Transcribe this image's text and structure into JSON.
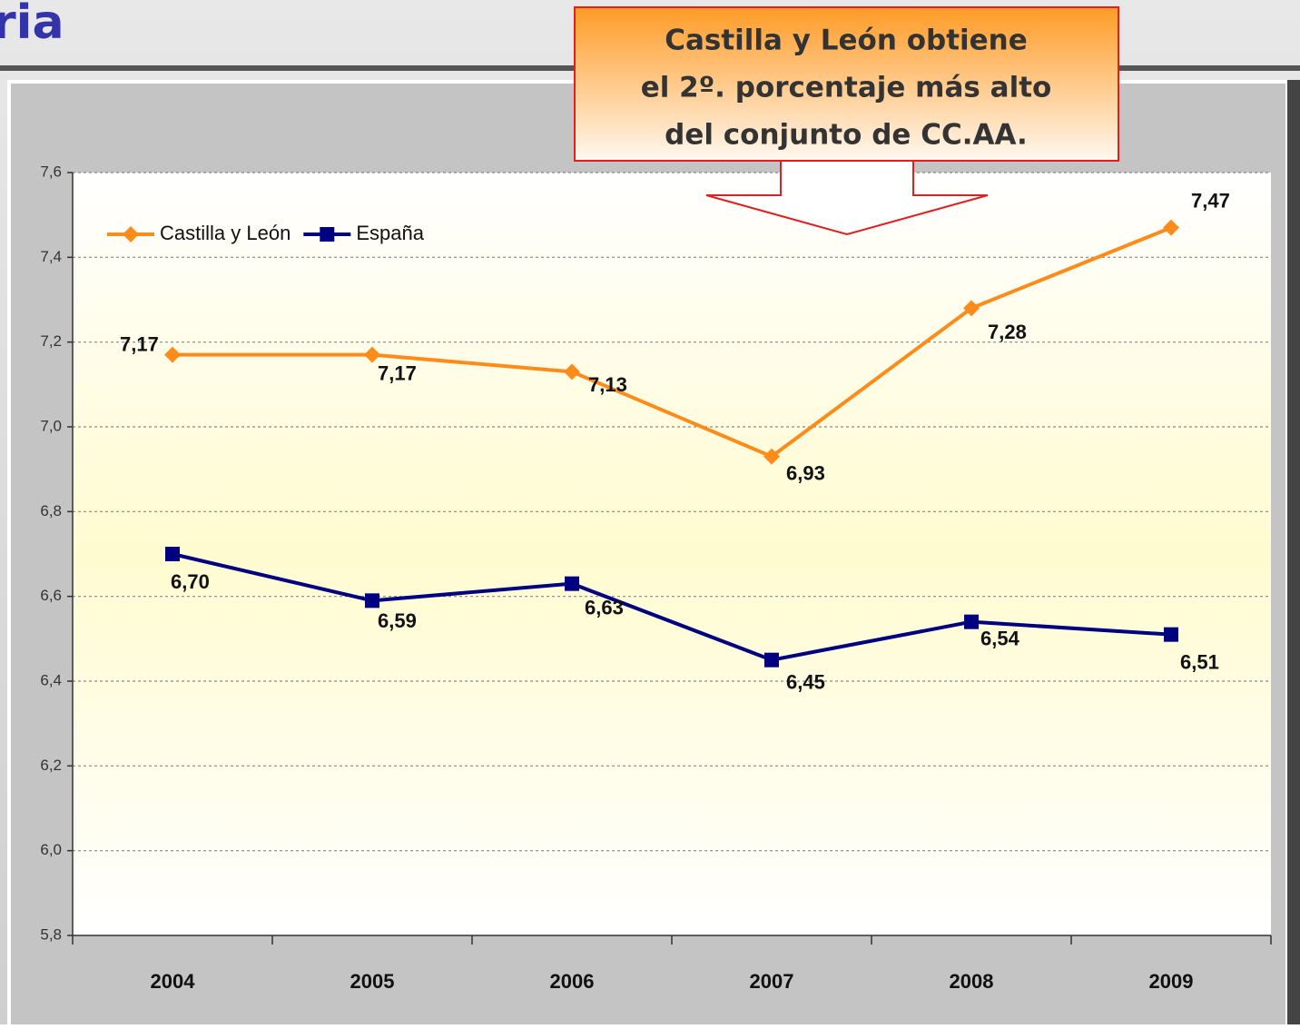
{
  "page_title": "ria",
  "annotation": [
    "Castilla y León obtiene",
    "el 2º. porcentaje más alto",
    "del conjunto de CC.AA."
  ],
  "chart_data": {
    "type": "line",
    "categories": [
      "2004",
      "2005",
      "2006",
      "2007",
      "2008",
      "2009"
    ],
    "series": [
      {
        "name": "Castilla y León",
        "color": "#ff8c1a",
        "marker": "diamond",
        "values": [
          7.17,
          7.17,
          7.13,
          6.93,
          7.28,
          7.47
        ],
        "value_labels": [
          "7,17",
          "7,17",
          "7,13",
          "6,93",
          "7,28",
          "7,47"
        ]
      },
      {
        "name": "España",
        "color": "#000080",
        "marker": "square",
        "values": [
          6.7,
          6.59,
          6.63,
          6.45,
          6.54,
          6.51
        ],
        "value_labels": [
          "6,70",
          "6,59",
          "6,63",
          "6,45",
          "6,54",
          "6,51"
        ]
      }
    ],
    "ylim": [
      5.8,
      7.6
    ],
    "yticks": [
      {
        "value": 5.8,
        "label": "5,8"
      },
      {
        "value": 6.0,
        "label": "6,0"
      },
      {
        "value": 6.2,
        "label": "6,2"
      },
      {
        "value": 6.4,
        "label": "6,4"
      },
      {
        "value": 6.6,
        "label": "6,6"
      },
      {
        "value": 6.8,
        "label": "6,8"
      },
      {
        "value": 7.0,
        "label": "7,0"
      },
      {
        "value": 7.2,
        "label": "7,2"
      },
      {
        "value": 7.4,
        "label": "7,4"
      },
      {
        "value": 7.6,
        "label": "7,6"
      }
    ],
    "grid": true,
    "legend": "top-left"
  }
}
